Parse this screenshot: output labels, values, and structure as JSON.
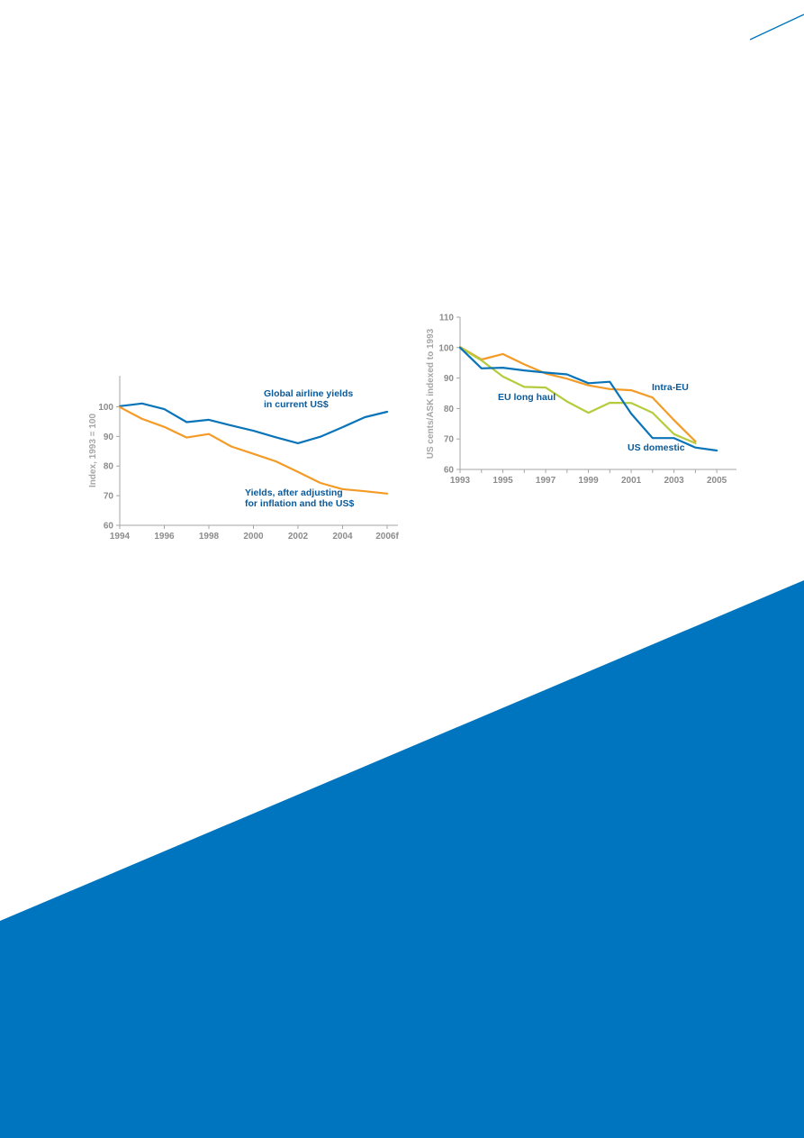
{
  "colors": {
    "brand_blue": "#0075bf",
    "series_blue": "#0a74b9",
    "series_orange": "#f39b26",
    "series_green": "#b4cc3c",
    "label_blue": "#0a5a9a"
  },
  "chart_data": [
    {
      "type": "line",
      "title": "",
      "xlabel": "",
      "ylabel": "Index, 1993 = 100",
      "ylim": [
        60,
        105
      ],
      "yticks": [
        60,
        70,
        80,
        90,
        100
      ],
      "xlim": [
        1994,
        2006
      ],
      "xticks": [
        1994,
        1996,
        1998,
        2000,
        2002,
        2004,
        2006
      ],
      "xtick_labels": [
        "1994",
        "1996",
        "1998",
        "2000",
        "2002",
        "2004",
        "2006f"
      ],
      "grid": false,
      "series": [
        {
          "name": "Global airline yields in current US$",
          "label_lines": [
            "Global airline yields",
            "in current US$"
          ],
          "color": "#0a74b9",
          "x": [
            1994,
            1995,
            1996,
            1997,
            1998,
            1999,
            2000,
            2001,
            2002,
            2003,
            2004,
            2005,
            2006
          ],
          "y": [
            100.2,
            101.1,
            99.2,
            94.8,
            95.6,
            93.7,
            91.9,
            89.7,
            87.7,
            89.9,
            93.1,
            96.5,
            98.3
          ]
        },
        {
          "name": "Yields, after adjusting for inflation and the US$",
          "label_lines": [
            "Yields, after adjusting",
            "for inflation and the US$"
          ],
          "color": "#f39b26",
          "x": [
            1994,
            1995,
            1996,
            1997,
            1998,
            1999,
            2000,
            2001,
            2002,
            2003,
            2004,
            2005,
            2006
          ],
          "y": [
            99.9,
            95.9,
            93.2,
            89.6,
            90.8,
            86.6,
            84.1,
            81.6,
            78.0,
            74.3,
            72.2,
            71.5,
            70.7
          ]
        }
      ]
    },
    {
      "type": "line",
      "title": "",
      "xlabel": "",
      "ylabel": "US cents/ASK indexed to 1993",
      "ylim": [
        60,
        110
      ],
      "yticks": [
        60,
        70,
        80,
        90,
        100,
        110
      ],
      "xlim": [
        1993,
        2005.5
      ],
      "xticks": [
        1993,
        1994,
        1995,
        1996,
        1997,
        1998,
        1999,
        2000,
        2001,
        2002,
        2003,
        2004,
        2005
      ],
      "xtick_labels": [
        "1993",
        "",
        "1995",
        "",
        "1997",
        "",
        "1999",
        "",
        "2001",
        "",
        "2003",
        "",
        "2005"
      ],
      "grid": false,
      "series": [
        {
          "name": "Intra-EU",
          "label_lines": [
            "Intra-EU"
          ],
          "color": "#f39b26",
          "x": [
            1993,
            1994,
            1995,
            1996,
            1997,
            1998,
            1999,
            2000,
            2001,
            2002,
            2003,
            2004
          ],
          "y": [
            100.2,
            96.1,
            97.9,
            94.5,
            91.5,
            89.8,
            87.6,
            86.4,
            86.0,
            83.6,
            76.2,
            69.2
          ]
        },
        {
          "name": "EU long haul",
          "label_lines": [
            "EU long haul"
          ],
          "color": "#b4cc3c",
          "x": [
            1993,
            1994,
            1995,
            1996,
            1997,
            1998,
            1999,
            2000,
            2001,
            2002,
            2003,
            2004
          ],
          "y": [
            100.1,
            95.8,
            90.5,
            87.1,
            86.9,
            82.3,
            78.6,
            81.9,
            81.8,
            78.6,
            71.6,
            68.6
          ]
        },
        {
          "name": "US domestic",
          "label_lines": [
            "US domestic"
          ],
          "color": "#0a74b9",
          "x": [
            1993,
            1994,
            1995,
            1996,
            1997,
            1998,
            1999,
            2000,
            2001,
            2002,
            2003,
            2004,
            2005
          ],
          "y": [
            100.0,
            93.2,
            93.4,
            92.5,
            91.8,
            91.2,
            88.3,
            88.8,
            78.3,
            70.3,
            70.3,
            67.2,
            66.2
          ]
        }
      ]
    }
  ]
}
